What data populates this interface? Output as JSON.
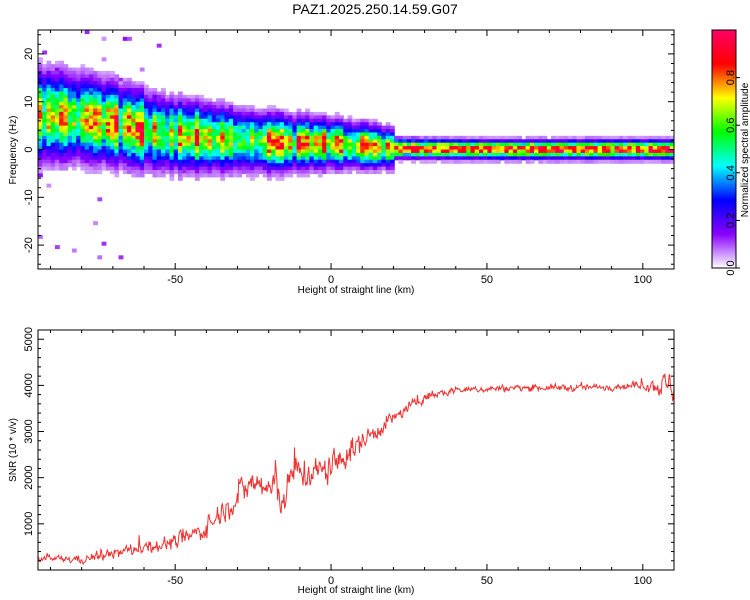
{
  "chart_data": [
    {
      "type": "heatmap",
      "title": "PAZ1.2025.250.14.59.G07",
      "xlabel": "Height of straight line (km)",
      "ylabel": "Frequency (Hz)",
      "xlim": [
        -94,
        110
      ],
      "ylim": [
        -25,
        25
      ],
      "x_ticks": [
        -50,
        0,
        50,
        100
      ],
      "y_ticks": [
        -20,
        -10,
        0,
        10,
        20
      ],
      "colorbar": {
        "label": "Normalized spectral amplitude",
        "range": [
          0,
          1
        ],
        "ticks": [
          0.0,
          0.2,
          0.4,
          0.6,
          0.8
        ],
        "tick_labels": [
          "0.0",
          "0.2",
          "0.4",
          "0.6",
          "0.8"
        ],
        "colormap": [
          "#ffffff",
          "#8800ff",
          "#0000ff",
          "#00ffff",
          "#00ff00",
          "#ffff00",
          "#ff0000",
          "#ff0066"
        ]
      },
      "ridge": [
        {
          "x": -90,
          "f": 7.0
        },
        {
          "x": -80,
          "f": 6.5
        },
        {
          "x": -70,
          "f": 5.5
        },
        {
          "x": -60,
          "f": 4.0
        },
        {
          "x": -50,
          "f": 3.0
        },
        {
          "x": -40,
          "f": 2.5
        },
        {
          "x": -30,
          "f": 2.0
        },
        {
          "x": -20,
          "f": 1.5
        },
        {
          "x": -10,
          "f": 1.3
        },
        {
          "x": 0,
          "f": 1.2
        },
        {
          "x": 10,
          "f": 0.8
        },
        {
          "x": 20,
          "f": 0.2
        },
        {
          "x": 50,
          "f": 0.0
        },
        {
          "x": 100,
          "f": 0.0
        },
        {
          "x": 110,
          "f": 0.0
        }
      ]
    },
    {
      "type": "line",
      "xlabel": "Height of straight line (km)",
      "ylabel": "SNR (10 * v/v)",
      "xlim": [
        -94,
        110
      ],
      "ylim": [
        0,
        5200
      ],
      "x_ticks": [
        -50,
        0,
        50,
        100
      ],
      "y_ticks": [
        1000,
        2000,
        3000,
        4000,
        5000
      ],
      "color": "#ee3333",
      "trend": [
        {
          "x": -94,
          "y": 250
        },
        {
          "x": -80,
          "y": 230
        },
        {
          "x": -70,
          "y": 350
        },
        {
          "x": -60,
          "y": 500
        },
        {
          "x": -50,
          "y": 600
        },
        {
          "x": -40,
          "y": 900
        },
        {
          "x": -35,
          "y": 1300
        },
        {
          "x": -25,
          "y": 1900
        },
        {
          "x": -15,
          "y": 1600
        },
        {
          "x": -12,
          "y": 2100
        },
        {
          "x": -5,
          "y": 2100
        },
        {
          "x": 0,
          "y": 2200
        },
        {
          "x": 10,
          "y": 2800
        },
        {
          "x": 20,
          "y": 3300
        },
        {
          "x": 30,
          "y": 3750
        },
        {
          "x": 40,
          "y": 3900
        },
        {
          "x": 60,
          "y": 3950
        },
        {
          "x": 80,
          "y": 3950
        },
        {
          "x": 100,
          "y": 4000
        },
        {
          "x": 110,
          "y": 4000
        }
      ],
      "noise": [
        {
          "x": -94,
          "amp": 120
        },
        {
          "x": -40,
          "amp": 400
        },
        {
          "x": -20,
          "amp": 800
        },
        {
          "x": 0,
          "amp": 700
        },
        {
          "x": 20,
          "amp": 300
        },
        {
          "x": 40,
          "amp": 150
        },
        {
          "x": 100,
          "amp": 150
        },
        {
          "x": 104,
          "amp": 400
        },
        {
          "x": 110,
          "amp": 700
        }
      ]
    }
  ]
}
